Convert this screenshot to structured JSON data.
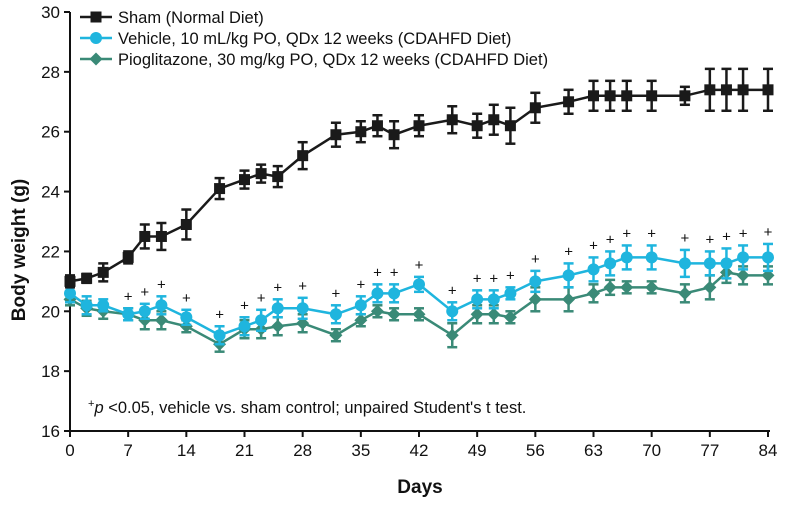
{
  "chart_data": {
    "type": "line",
    "xlabel": "Days",
    "ylabel": "Body weight (g)",
    "xlim": [
      0,
      84
    ],
    "ylim": [
      16,
      30
    ],
    "xticks": [
      0,
      7,
      14,
      21,
      28,
      35,
      42,
      49,
      56,
      63,
      70,
      77,
      84
    ],
    "yticks": [
      16,
      18,
      20,
      22,
      24,
      26,
      28,
      30
    ],
    "grid": false,
    "legend_position": "top-left",
    "footnote": {
      "superscript": "+",
      "italic": "p",
      "text": " <0.05, vehicle vs. sham control; unpaired Student's t test."
    },
    "significance_marker": "+",
    "series": [
      {
        "name": "Sham (Normal Diet)",
        "color": "#1a1a1a",
        "marker": "square",
        "x": [
          0,
          2,
          4,
          7,
          9,
          11,
          14,
          18,
          21,
          23,
          25,
          28,
          32,
          35,
          37,
          39,
          42,
          46,
          49,
          51,
          53,
          56,
          60,
          63,
          65,
          67,
          70,
          74,
          77,
          79,
          81,
          84
        ],
        "y": [
          21.0,
          21.1,
          21.3,
          21.8,
          22.5,
          22.5,
          22.9,
          24.1,
          24.4,
          24.6,
          24.5,
          25.2,
          25.9,
          26.0,
          26.2,
          25.9,
          26.2,
          26.4,
          26.2,
          26.4,
          26.2,
          26.8,
          27.0,
          27.2,
          27.2,
          27.2,
          27.2,
          27.2,
          27.4,
          27.4,
          27.4,
          27.4
        ],
        "error": [
          0.2,
          0.15,
          0.3,
          0.2,
          0.4,
          0.45,
          0.5,
          0.35,
          0.3,
          0.3,
          0.35,
          0.45,
          0.4,
          0.35,
          0.35,
          0.45,
          0.35,
          0.45,
          0.4,
          0.5,
          0.6,
          0.5,
          0.4,
          0.5,
          0.5,
          0.5,
          0.5,
          0.3,
          0.7,
          0.7,
          0.7,
          0.7
        ]
      },
      {
        "name": "Vehicle, 10 mL/kg PO, QDx 12 weeks (CDAHFD Diet)",
        "color": "#1fb5de",
        "marker": "circle",
        "x": [
          0,
          2,
          4,
          7,
          9,
          11,
          14,
          18,
          21,
          23,
          25,
          28,
          32,
          35,
          37,
          39,
          42,
          46,
          49,
          51,
          53,
          56,
          60,
          63,
          65,
          67,
          70,
          74,
          77,
          79,
          81,
          84
        ],
        "y": [
          20.6,
          20.2,
          20.2,
          19.9,
          20.0,
          20.2,
          19.8,
          19.2,
          19.5,
          19.7,
          20.1,
          20.1,
          19.9,
          20.2,
          20.6,
          20.6,
          20.9,
          20.0,
          20.4,
          20.4,
          20.6,
          21.0,
          21.2,
          21.4,
          21.6,
          21.8,
          21.8,
          21.6,
          21.6,
          21.6,
          21.8,
          21.8
        ],
        "error": [
          0.3,
          0.3,
          0.2,
          0.2,
          0.25,
          0.3,
          0.25,
          0.3,
          0.3,
          0.35,
          0.3,
          0.35,
          0.3,
          0.3,
          0.3,
          0.3,
          0.25,
          0.3,
          0.3,
          0.3,
          0.2,
          0.35,
          0.4,
          0.4,
          0.4,
          0.4,
          0.4,
          0.45,
          0.4,
          0.5,
          0.4,
          0.45
        ]
      },
      {
        "name": "Pioglitazone, 30 mg/kg PO, QDx 12 weeks (CDAHFD Diet)",
        "color": "#3a8a77",
        "marker": "diamond",
        "x": [
          0,
          2,
          4,
          7,
          9,
          11,
          14,
          18,
          21,
          23,
          25,
          28,
          32,
          35,
          37,
          39,
          42,
          46,
          49,
          51,
          53,
          56,
          60,
          63,
          65,
          67,
          70,
          74,
          77,
          79,
          81,
          84
        ],
        "y": [
          20.4,
          20.1,
          20.0,
          19.9,
          19.7,
          19.7,
          19.5,
          18.9,
          19.4,
          19.4,
          19.5,
          19.6,
          19.2,
          19.7,
          20.0,
          19.9,
          19.9,
          19.2,
          19.9,
          19.9,
          19.8,
          20.4,
          20.4,
          20.6,
          20.8,
          20.8,
          20.8,
          20.6,
          20.8,
          21.3,
          21.2,
          21.2
        ],
        "error": [
          0.2,
          0.25,
          0.25,
          0.2,
          0.3,
          0.3,
          0.2,
          0.25,
          0.3,
          0.3,
          0.3,
          0.3,
          0.2,
          0.2,
          0.2,
          0.2,
          0.2,
          0.4,
          0.3,
          0.3,
          0.2,
          0.4,
          0.4,
          0.3,
          0.25,
          0.2,
          0.2,
          0.3,
          0.4,
          0.35,
          0.3,
          0.3
        ]
      }
    ],
    "significance_days": [
      7,
      9,
      11,
      14,
      18,
      21,
      23,
      25,
      28,
      32,
      35,
      37,
      39,
      42,
      46,
      49,
      51,
      53,
      56,
      60,
      63,
      65,
      67,
      70,
      74,
      77,
      79,
      81,
      84
    ]
  }
}
